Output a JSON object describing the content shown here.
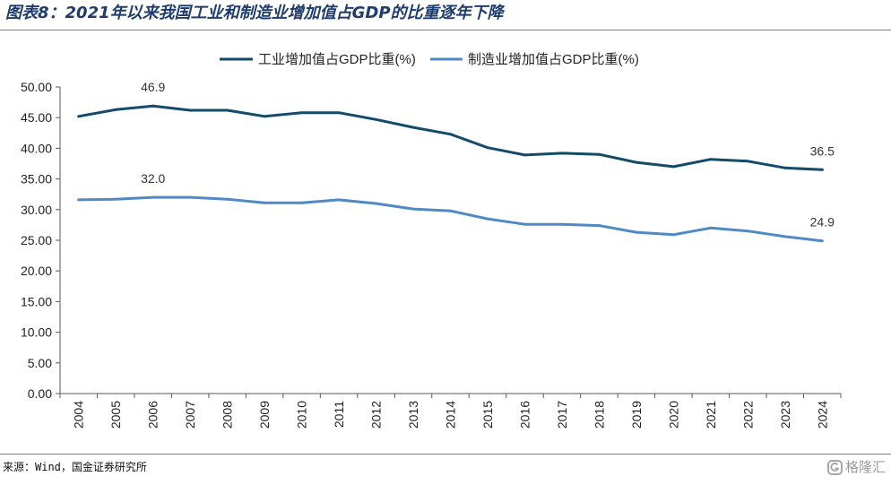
{
  "chart_data": {
    "type": "line",
    "title": "图表8：2021年以来我国工业和制造业增加值占GDP的比重逐年下降",
    "xlabel": "",
    "ylabel": "",
    "categories": [
      "2004",
      "2005",
      "2006",
      "2007",
      "2008",
      "2009",
      "2010",
      "2011",
      "2012",
      "2013",
      "2014",
      "2015",
      "2016",
      "2017",
      "2018",
      "2019",
      "2020",
      "2021",
      "2022",
      "2023",
      "2024"
    ],
    "series": [
      {
        "name": "工业增加值占GDP比重(%)",
        "color": "#134b6b",
        "values": [
          45.2,
          46.3,
          46.9,
          46.2,
          46.2,
          45.2,
          45.8,
          45.8,
          44.7,
          43.4,
          42.3,
          40.1,
          38.9,
          39.2,
          39.0,
          37.7,
          37.0,
          38.2,
          37.9,
          36.8,
          36.5
        ]
      },
      {
        "name": "制造业增加值占GDP比重(%)",
        "color": "#4f8ac6",
        "values": [
          31.6,
          31.7,
          32.0,
          32.0,
          31.7,
          31.1,
          31.1,
          31.6,
          31.0,
          30.1,
          29.8,
          28.5,
          27.6,
          27.6,
          27.4,
          26.3,
          25.9,
          27.0,
          26.5,
          25.6,
          24.9
        ]
      }
    ],
    "data_labels": [
      {
        "series": 0,
        "category": "2006",
        "text": "46.9"
      },
      {
        "series": 1,
        "category": "2006",
        "text": "32.0"
      },
      {
        "series": 0,
        "category": "2024",
        "text": "36.5"
      },
      {
        "series": 1,
        "category": "2024",
        "text": "24.9"
      }
    ],
    "y_ticks": [
      "0.00",
      "5.00",
      "10.00",
      "15.00",
      "20.00",
      "25.00",
      "30.00",
      "35.00",
      "40.00",
      "45.00",
      "50.00"
    ],
    "ylim": [
      0,
      50
    ],
    "legend": "top-center",
    "grid": false
  },
  "source": {
    "text": "来源：Wind，国金证券研究所"
  },
  "watermark": {
    "text": "格隆汇",
    "icon": "gelonghui-logo-icon",
    "color": "#9c9c9c"
  }
}
